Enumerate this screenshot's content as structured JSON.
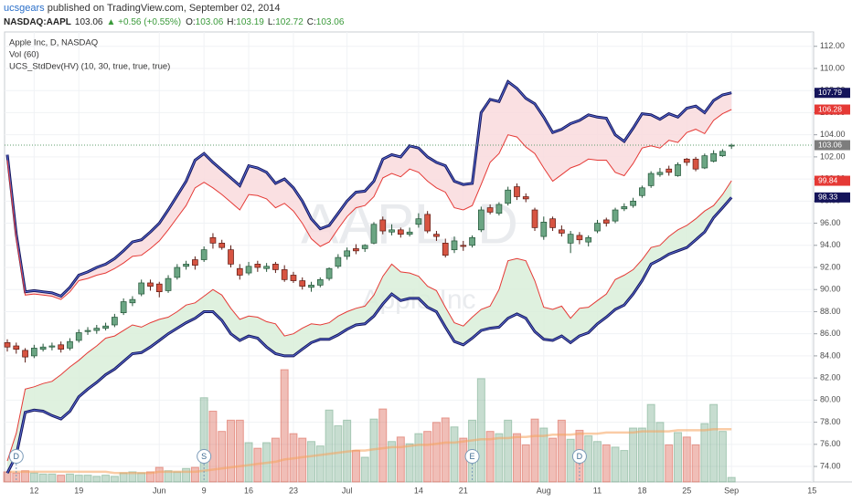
{
  "header": {
    "author": "ucsgears",
    "published": " published on TradingView.com, September 02, 2014",
    "symbol": "NASDAQ:AAPL",
    "price": "103.06",
    "change": "▲ +0.56 (+0.55%)",
    "ohlc": [
      {
        "key": "O:",
        "value": "103.06"
      },
      {
        "key": "H:",
        "value": "103.19"
      },
      {
        "key": "L:",
        "value": "102.72"
      },
      {
        "key": "C:",
        "value": "103.06"
      }
    ]
  },
  "chart_data": {
    "type": "candlestick",
    "legend": [
      "Apple Inc, D, NASDAQ",
      "Vol (60)",
      "UCS_StdDev(HV) (10, 30, true, true, true)"
    ],
    "watermark": "AAPL, D",
    "watermark_sub": "Apple Inc",
    "categories": [
      null,
      null,
      null,
      "12",
      null,
      null,
      null,
      null,
      "19",
      null,
      null,
      null,
      null,
      null,
      null,
      null,
      null,
      "Jun",
      null,
      null,
      null,
      null,
      "9",
      null,
      null,
      null,
      null,
      "16",
      null,
      null,
      null,
      null,
      "23",
      null,
      null,
      null,
      null,
      null,
      "Jul",
      null,
      null,
      null,
      null,
      null,
      null,
      null,
      "14",
      null,
      null,
      null,
      null,
      "21",
      null,
      null,
      null,
      null,
      null,
      null,
      null,
      null,
      "Aug",
      null,
      null,
      null,
      null,
      null,
      "11",
      null,
      null,
      null,
      null,
      "18",
      null,
      null,
      null,
      null,
      "25",
      null,
      null,
      null,
      null,
      "Sep",
      null,
      null,
      null,
      null,
      null,
      null,
      null,
      null,
      "15"
    ],
    "events": [
      null,
      "D",
      null,
      null,
      null,
      null,
      null,
      null,
      null,
      null,
      null,
      null,
      null,
      null,
      null,
      null,
      null,
      null,
      null,
      null,
      null,
      null,
      "S",
      null,
      null,
      null,
      null,
      null,
      null,
      null,
      null,
      null,
      null,
      null,
      null,
      null,
      null,
      null,
      null,
      null,
      null,
      null,
      null,
      null,
      null,
      null,
      null,
      null,
      null,
      null,
      null,
      null,
      "E",
      null,
      null,
      null,
      null,
      null,
      null,
      null,
      null,
      null,
      null,
      null,
      "D",
      null,
      null,
      null,
      null,
      null,
      null,
      null,
      null,
      null,
      null,
      null,
      null,
      null,
      null,
      null,
      null,
      null,
      null,
      null,
      null,
      null,
      null,
      null,
      null,
      null,
      null
    ],
    "open": [
      85.2,
      84.9,
      84.5,
      84.0,
      84.6,
      84.8,
      85.0,
      84.7,
      85.4,
      86.2,
      86.3,
      86.5,
      86.8,
      87.9,
      88.8,
      89.6,
      90.6,
      90.5,
      89.9,
      91.1,
      92.1,
      92.7,
      92.7,
      94.7,
      94.2,
      93.6,
      91.9,
      91.5,
      92.3,
      91.9,
      92.3,
      91.8,
      91.3,
      90.8,
      90.2,
      90.4,
      91.0,
      92.1,
      93.0,
      93.7,
      93.7,
      94.2,
      96.3,
      95.2,
      95.4,
      95.0,
      95.9,
      96.8,
      95.0,
      94.2,
      93.6,
      94.0,
      94.0,
      95.4,
      97.4,
      96.9,
      97.8,
      99.3,
      98.4,
      97.2,
      94.8,
      96.4,
      95.4,
      94.2,
      94.9,
      94.3,
      95.3,
      96.3,
      96.2,
      97.3,
      97.6,
      98.5,
      99.4,
      100.4,
      100.9,
      100.3,
      101.8,
      101.8,
      101.0,
      101.6,
      102.1,
      103.06,
      null,
      null,
      null,
      null,
      null,
      null,
      null,
      null,
      null
    ],
    "high": [
      85.5,
      85.2,
      84.7,
      85.0,
      85.1,
      85.2,
      85.3,
      85.6,
      86.4,
      86.6,
      86.8,
      87.0,
      87.8,
      89.2,
      89.4,
      90.9,
      90.9,
      90.7,
      91.3,
      92.3,
      92.6,
      93.0,
      93.9,
      95.1,
      94.5,
      94.0,
      92.3,
      92.5,
      92.6,
      92.4,
      92.5,
      92.2,
      91.6,
      91.1,
      90.7,
      91.1,
      92.0,
      93.2,
      93.8,
      94.1,
      94.1,
      96.1,
      96.6,
      95.9,
      95.6,
      95.6,
      96.9,
      97.1,
      95.3,
      94.6,
      94.8,
      94.4,
      94.9,
      97.5,
      97.7,
      97.9,
      99.3,
      99.6,
      98.7,
      97.4,
      96.6,
      96.6,
      95.8,
      95.3,
      95.2,
      94.9,
      96.3,
      96.5,
      97.4,
      97.8,
      98.3,
      99.4,
      100.7,
      101.0,
      101.2,
      101.5,
      101.9,
      102.0,
      102.3,
      102.6,
      102.7,
      103.19,
      null,
      null,
      null,
      null,
      null,
      null,
      null,
      null,
      null
    ],
    "low": [
      84.4,
      84.2,
      83.4,
      83.8,
      84.4,
      84.5,
      84.3,
      84.5,
      85.2,
      85.9,
      86.0,
      86.3,
      86.6,
      87.7,
      88.5,
      89.4,
      89.9,
      89.3,
      89.7,
      90.9,
      91.8,
      91.8,
      92.5,
      93.7,
      93.6,
      92.0,
      90.9,
      91.3,
      91.6,
      91.6,
      91.5,
      90.7,
      90.6,
      90.0,
      89.8,
      90.2,
      90.8,
      91.9,
      92.7,
      93.2,
      93.4,
      94.1,
      95.0,
      94.9,
      94.7,
      94.8,
      95.6,
      95.1,
      94.4,
      92.9,
      93.3,
      93.5,
      93.8,
      95.2,
      96.8,
      96.7,
      97.6,
      98.1,
      97.9,
      95.3,
      94.5,
      95.3,
      94.8,
      93.3,
      94.1,
      93.9,
      95.1,
      95.7,
      96.0,
      97.1,
      97.4,
      98.3,
      99.2,
      100.2,
      100.3,
      100.2,
      101.2,
      100.7,
      100.9,
      101.5,
      102.0,
      102.72,
      null,
      null,
      null,
      null,
      null,
      null,
      null,
      null,
      null
    ],
    "close": [
      84.8,
      84.6,
      83.9,
      84.7,
      84.8,
      84.9,
      84.6,
      85.3,
      86.1,
      86.3,
      86.5,
      86.7,
      87.5,
      88.9,
      89.1,
      90.6,
      90.3,
      89.8,
      91.0,
      92.0,
      92.3,
      92.2,
      93.6,
      94.2,
      93.8,
      92.3,
      91.3,
      92.1,
      92.0,
      92.1,
      91.8,
      90.9,
      90.8,
      90.3,
      90.4,
      90.9,
      91.9,
      92.9,
      93.5,
      93.5,
      94.0,
      95.9,
      95.3,
      95.4,
      95.0,
      95.2,
      96.4,
      95.3,
      94.8,
      93.1,
      94.4,
      93.9,
      94.7,
      97.2,
      97.0,
      97.7,
      99.0,
      98.4,
      98.2,
      95.6,
      96.1,
      95.6,
      95.1,
      95.0,
      94.5,
      94.7,
      96.0,
      96.0,
      97.2,
      97.5,
      98.0,
      99.2,
      100.5,
      100.6,
      100.6,
      101.3,
      101.5,
      100.9,
      102.1,
      102.3,
      102.5,
      103.06,
      null,
      null,
      null,
      null,
      null,
      null,
      null,
      null,
      null
    ],
    "colors": {
      "up": "#6ba583",
      "up_edge": "#225437",
      "down": "#d75442",
      "down_edge": "#5b1a13",
      "price_tag": "#7d7d7d",
      "price_line": "#5f9c6d"
    },
    "volume": {
      "values": [
        9,
        8,
        10,
        8,
        7,
        7,
        6,
        7,
        6,
        6,
        5,
        6,
        5,
        8,
        9,
        8,
        9,
        13,
        10,
        9,
        12,
        13,
        75,
        63,
        45,
        55,
        55,
        35,
        30,
        35,
        39,
        100,
        43,
        39,
        36,
        32,
        64,
        50,
        55,
        28,
        22,
        56,
        65,
        36,
        40,
        34,
        43,
        45,
        53,
        57,
        49,
        39,
        55,
        92,
        45,
        43,
        55,
        43,
        33,
        56,
        48,
        39,
        55,
        38,
        46,
        41,
        36,
        33,
        31,
        28,
        48,
        48,
        69,
        53,
        33,
        44,
        40,
        33,
        52,
        69,
        45,
        4,
        null,
        null,
        null,
        null,
        null,
        null,
        null,
        null,
        null
      ],
      "ma": [
        9,
        9,
        9,
        9,
        9,
        9,
        9,
        9,
        9,
        9,
        9,
        9,
        8,
        8,
        8,
        8,
        8,
        9,
        9,
        9,
        9,
        9,
        10,
        11,
        12,
        13,
        14,
        15,
        16,
        17,
        18,
        20,
        21,
        22,
        23,
        24,
        25,
        26,
        27,
        28,
        28,
        29,
        30,
        31,
        31,
        32,
        33,
        33,
        34,
        35,
        35,
        36,
        37,
        38,
        38,
        39,
        39,
        40,
        40,
        41,
        41,
        42,
        42,
        42,
        43,
        43,
        43,
        44,
        44,
        44,
        44,
        45,
        45,
        45,
        45,
        46,
        46,
        46,
        46,
        47,
        47,
        47,
        null,
        null,
        null,
        null,
        null,
        null,
        null,
        null,
        null
      ],
      "ma_color": "#f5a25d"
    },
    "bands": [
      {
        "color": "#14145a",
        "values": [
          102.2,
          95.0,
          89.8,
          89.9,
          89.8,
          89.7,
          89.4,
          90.2,
          91.3,
          91.6,
          92.0,
          92.3,
          92.8,
          93.5,
          94.3,
          94.5,
          95.2,
          96.0,
          97.2,
          98.5,
          99.8,
          101.7,
          102.3,
          101.5,
          100.8,
          100.1,
          99.4,
          101.2,
          101.0,
          100.6,
          99.6,
          100.0,
          99.2,
          98.0,
          96.4,
          95.5,
          95.8,
          96.9,
          98.0,
          98.8,
          98.9,
          99.8,
          101.8,
          102.2,
          102.0,
          103.0,
          102.8,
          102.0,
          101.5,
          101.2,
          99.8,
          99.5,
          99.6,
          106.0,
          107.2,
          107.0,
          108.8,
          108.2,
          107.3,
          106.8,
          105.6,
          104.2,
          104.5,
          105.0,
          105.3,
          105.8,
          105.6,
          105.5,
          104.0,
          103.4,
          104.6,
          105.9,
          105.8,
          105.4,
          105.9,
          105.6,
          106.4,
          106.6,
          106.0,
          107.1,
          107.6,
          107.79,
          null,
          null,
          null,
          null,
          null,
          null,
          null,
          null,
          null
        ]
      },
      {
        "color": "#e53935",
        "values": [
          101.7,
          94.6,
          89.5,
          89.6,
          89.5,
          89.4,
          89.1,
          89.8,
          90.8,
          91.0,
          91.3,
          91.5,
          91.9,
          92.4,
          93.0,
          93.1,
          93.7,
          94.4,
          95.4,
          96.5,
          97.6,
          99.2,
          99.7,
          99.2,
          98.6,
          97.9,
          97.2,
          98.6,
          98.5,
          98.2,
          97.4,
          97.8,
          97.1,
          96.0,
          94.6,
          93.9,
          94.3,
          95.5,
          96.6,
          97.4,
          97.6,
          98.4,
          100.1,
          100.5,
          100.2,
          100.9,
          100.6,
          99.8,
          99.2,
          98.8,
          97.4,
          97.2,
          97.6,
          99.5,
          101.5,
          102.3,
          104.0,
          103.8,
          102.9,
          102.3,
          101.0,
          99.8,
          100.4,
          101.0,
          101.3,
          101.8,
          101.7,
          101.7,
          100.6,
          100.3,
          101.4,
          102.8,
          103.0,
          102.8,
          103.5,
          103.3,
          104.2,
          104.5,
          104.1,
          105.3,
          105.9,
          106.28,
          null,
          null,
          null,
          null,
          null,
          null,
          null,
          null,
          null
        ]
      },
      {
        "color": "#e53935",
        "values": [
          74.5,
          77.0,
          81.0,
          81.2,
          81.5,
          81.7,
          82.3,
          83.0,
          83.6,
          84.3,
          84.9,
          85.6,
          85.8,
          86.3,
          86.8,
          86.6,
          87.0,
          87.3,
          87.5,
          88.0,
          88.6,
          88.8,
          89.4,
          90.0,
          89.5,
          88.3,
          87.3,
          87.6,
          87.5,
          87.1,
          86.9,
          85.8,
          86.0,
          86.5,
          86.9,
          86.8,
          87.0,
          87.6,
          88.0,
          88.3,
          88.5,
          89.5,
          91.2,
          92.3,
          91.6,
          91.5,
          91.2,
          90.3,
          89.9,
          88.4,
          87.0,
          86.7,
          87.5,
          88.2,
          88.5,
          90.0,
          92.6,
          92.8,
          92.6,
          90.8,
          88.4,
          88.2,
          88.5,
          87.4,
          88.3,
          88.4,
          89.0,
          89.6,
          90.9,
          91.3,
          91.8,
          92.7,
          93.8,
          94.0,
          94.8,
          95.4,
          95.8,
          96.4,
          97.1,
          97.6,
          98.6,
          99.84,
          null,
          null,
          null,
          null,
          null,
          null,
          null,
          null,
          null
        ]
      },
      {
        "color": "#14145a",
        "values": [
          73.4,
          75.0,
          78.9,
          79.1,
          79.0,
          78.6,
          78.3,
          79.0,
          80.3,
          81.0,
          81.6,
          82.3,
          82.8,
          83.5,
          84.2,
          84.3,
          84.8,
          85.4,
          86.0,
          86.5,
          87.0,
          87.4,
          88.0,
          88.0,
          87.2,
          86.0,
          85.4,
          85.8,
          85.6,
          84.8,
          84.2,
          84.0,
          84.0,
          84.6,
          85.2,
          85.5,
          85.5,
          85.9,
          86.4,
          86.8,
          86.9,
          87.6,
          88.7,
          89.6,
          89.0,
          89.2,
          89.2,
          88.4,
          88.0,
          86.6,
          85.3,
          85.0,
          85.6,
          86.3,
          86.5,
          86.6,
          87.4,
          87.8,
          87.4,
          86.2,
          85.5,
          85.4,
          85.8,
          85.2,
          85.8,
          86.1,
          86.9,
          87.5,
          88.2,
          88.6,
          89.6,
          90.8,
          92.3,
          92.7,
          93.2,
          93.5,
          93.8,
          94.5,
          95.2,
          96.5,
          97.4,
          98.33,
          null,
          null,
          null,
          null,
          null,
          null,
          null,
          null,
          null
        ]
      }
    ],
    "band_fills": [
      "#f9dadd",
      "#d9eed9"
    ],
    "ylim": [
      72.6,
      113.3
    ],
    "yticks": [
      {
        "value": 74,
        "label": "74.00"
      },
      {
        "value": 76,
        "label": "76.00"
      },
      {
        "value": 78,
        "label": "78.00"
      },
      {
        "value": 80,
        "label": "80.00"
      },
      {
        "value": 82,
        "label": "82.00"
      },
      {
        "value": 84,
        "label": "84.00"
      },
      {
        "value": 86,
        "label": "86.00"
      },
      {
        "value": 88,
        "label": "88.00"
      },
      {
        "value": 90,
        "label": "90.00"
      },
      {
        "value": 92,
        "label": "92.00"
      },
      {
        "value": 94,
        "label": "94.00"
      },
      {
        "value": 96,
        "label": "96.00"
      },
      {
        "value": 98,
        "label": "98.00"
      },
      {
        "value": 100,
        "label": "100.00"
      },
      {
        "value": 102,
        "label": "102.00"
      },
      {
        "value": 104,
        "label": "104.00"
      },
      {
        "value": 106,
        "label": "106.00"
      },
      {
        "value": 108,
        "label": "108.00"
      },
      {
        "value": 110,
        "label": "110.00"
      },
      {
        "value": 112,
        "label": "112.00"
      }
    ],
    "grid": true
  }
}
